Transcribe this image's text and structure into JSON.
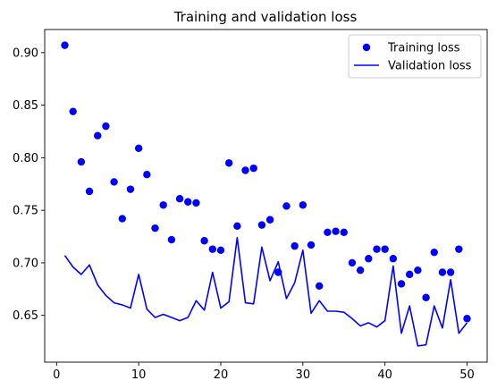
{
  "chart_data": {
    "type": "line",
    "title": "Training and validation loss",
    "xlabel": "",
    "ylabel": "",
    "xlim": [
      -1.45,
      52.45
    ],
    "ylim": [
      0.6055,
      0.922
    ],
    "xticks": [
      0,
      10,
      20,
      30,
      40,
      50
    ],
    "yticks": [
      0.65,
      0.7,
      0.75,
      0.8,
      0.85,
      0.9
    ],
    "ytick_labels": [
      "0.65",
      "0.70",
      "0.75",
      "0.80",
      "0.85",
      "0.90"
    ],
    "grid": false,
    "legend_position": "upper-right",
    "x": [
      1,
      2,
      3,
      4,
      5,
      6,
      7,
      8,
      9,
      10,
      11,
      12,
      13,
      14,
      15,
      16,
      17,
      18,
      19,
      20,
      21,
      22,
      23,
      24,
      25,
      26,
      27,
      28,
      29,
      30,
      31,
      32,
      33,
      34,
      35,
      36,
      37,
      38,
      39,
      40,
      41,
      42,
      43,
      44,
      45,
      46,
      47,
      48,
      49,
      50
    ],
    "series": [
      {
        "name": "Training loss",
        "style": "markers",
        "color": "#0000ff",
        "values": [
          0.907,
          0.844,
          0.796,
          0.768,
          0.821,
          0.83,
          0.777,
          0.742,
          0.77,
          0.809,
          0.784,
          0.733,
          0.755,
          0.722,
          0.761,
          0.758,
          0.757,
          0.721,
          0.713,
          0.712,
          0.795,
          0.735,
          0.788,
          0.79,
          0.736,
          0.741,
          0.691,
          0.754,
          0.716,
          0.755,
          0.717,
          0.678,
          0.729,
          0.73,
          0.729,
          0.7,
          0.693,
          0.704,
          0.713,
          0.713,
          0.704,
          0.68,
          0.689,
          0.693,
          0.667,
          0.71,
          0.691,
          0.691,
          0.713,
          0.647
        ]
      },
      {
        "name": "Validation loss",
        "style": "line",
        "color": "#0000ff",
        "values": [
          0.707,
          0.696,
          0.689,
          0.698,
          0.679,
          0.669,
          0.662,
          0.66,
          0.657,
          0.689,
          0.656,
          0.648,
          0.651,
          0.648,
          0.645,
          0.648,
          0.664,
          0.655,
          0.691,
          0.657,
          0.663,
          0.724,
          0.662,
          0.661,
          0.715,
          0.683,
          0.701,
          0.666,
          0.681,
          0.712,
          0.652,
          0.664,
          0.654,
          0.654,
          0.653,
          0.647,
          0.64,
          0.643,
          0.639,
          0.645,
          0.697,
          0.633,
          0.659,
          0.621,
          0.622,
          0.659,
          0.638,
          0.684,
          0.633,
          0.643
        ]
      }
    ]
  }
}
